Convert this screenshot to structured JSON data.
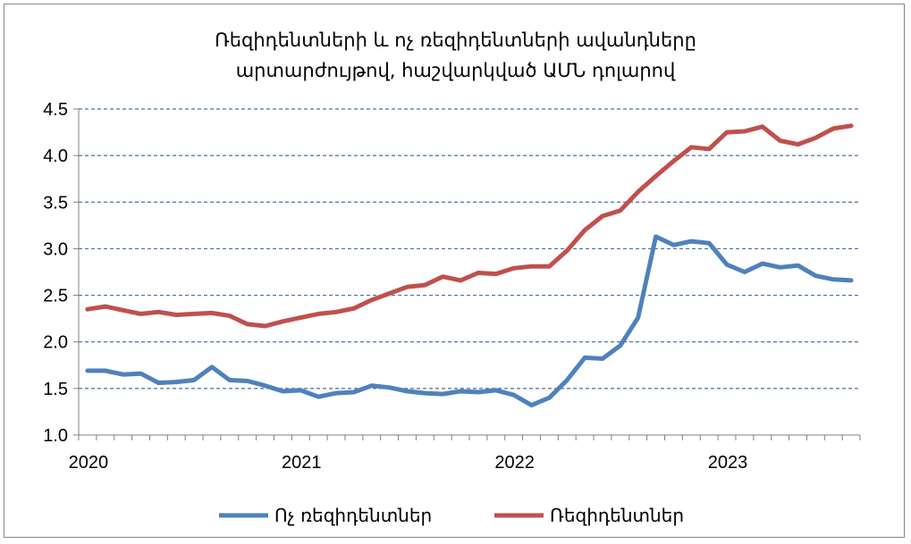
{
  "chart_data": {
    "type": "line",
    "title_lines": [
      "Ռեզիդենտների և ոչ ռեզիդենտների ավանդները",
      "արտարժույթով, հաշվարկված ԱՄՆ դոլարով"
    ],
    "xlabel": "",
    "ylabel": "",
    "ylim": [
      1.0,
      4.5
    ],
    "yticks": [
      "1.0",
      "1.5",
      "2.0",
      "2.5",
      "3.0",
      "3.5",
      "4.0",
      "4.5"
    ],
    "x_year_labels": [
      "2020",
      "2021",
      "2022",
      "2023"
    ],
    "grid": "horizontal dashed",
    "legend_position": "bottom",
    "series": [
      {
        "name": "Ոչ ռեզիդենտներ",
        "color": "#4F81BD",
        "values": [
          1.69,
          1.69,
          1.65,
          1.66,
          1.56,
          1.57,
          1.59,
          1.73,
          1.59,
          1.58,
          1.53,
          1.47,
          1.48,
          1.41,
          1.45,
          1.46,
          1.53,
          1.51,
          1.47,
          1.45,
          1.44,
          1.47,
          1.46,
          1.48,
          1.43,
          1.32,
          1.4,
          1.59,
          1.83,
          1.82,
          1.96,
          2.26,
          3.13,
          3.04,
          3.08,
          3.06,
          2.83,
          2.75,
          2.84,
          2.8,
          2.82,
          2.71,
          2.67,
          2.66
        ]
      },
      {
        "name": "Ռեզիդենտներ",
        "color": "#C0504D",
        "values": [
          2.35,
          2.38,
          2.34,
          2.3,
          2.32,
          2.29,
          2.3,
          2.31,
          2.28,
          2.19,
          2.17,
          2.22,
          2.26,
          2.3,
          2.32,
          2.36,
          2.45,
          2.52,
          2.59,
          2.61,
          2.7,
          2.66,
          2.74,
          2.73,
          2.79,
          2.81,
          2.81,
          2.98,
          3.2,
          3.35,
          3.41,
          3.61,
          3.78,
          3.94,
          4.09,
          4.07,
          4.25,
          4.26,
          4.31,
          4.16,
          4.12,
          4.19,
          4.29,
          4.32
        ]
      }
    ]
  }
}
